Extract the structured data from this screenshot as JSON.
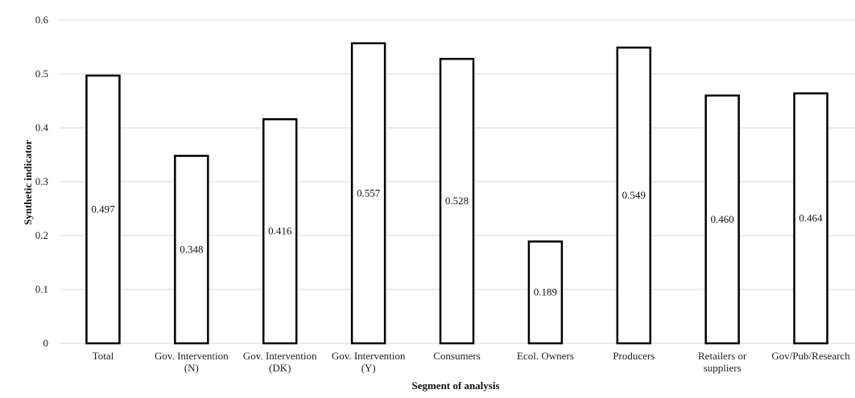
{
  "chart_data": {
    "type": "bar",
    "categories": [
      [
        "Total"
      ],
      [
        "Gov. Intervention",
        "(N)"
      ],
      [
        "Gov. Intervention",
        "(DK)"
      ],
      [
        "Gov. Intervention",
        "(Y)"
      ],
      [
        "Consumers"
      ],
      [
        "Ecol. Owners"
      ],
      [
        "Producers"
      ],
      [
        "Retailers or",
        "suppliers"
      ],
      [
        "Gov/Pub/Research"
      ]
    ],
    "values": [
      0.497,
      0.348,
      0.416,
      0.557,
      0.528,
      0.189,
      0.549,
      0.46,
      0.464
    ],
    "value_labels": [
      "0.497",
      "0.348",
      "0.416",
      "0.557",
      "0.528",
      "0.189",
      "0.549",
      "0.460",
      "0.464"
    ],
    "yticks": [
      "0",
      "0.1",
      "0.2",
      "0.3",
      "0.4",
      "0.5",
      "0.6"
    ],
    "xlabel": "Segment of analysis",
    "ylabel": "Synthetic indicator",
    "ylim": [
      0,
      0.6
    ],
    "grid": true,
    "bar_fill": "#ffffff",
    "bar_stroke": "#000000",
    "grid_color": "#d9d9d9"
  }
}
